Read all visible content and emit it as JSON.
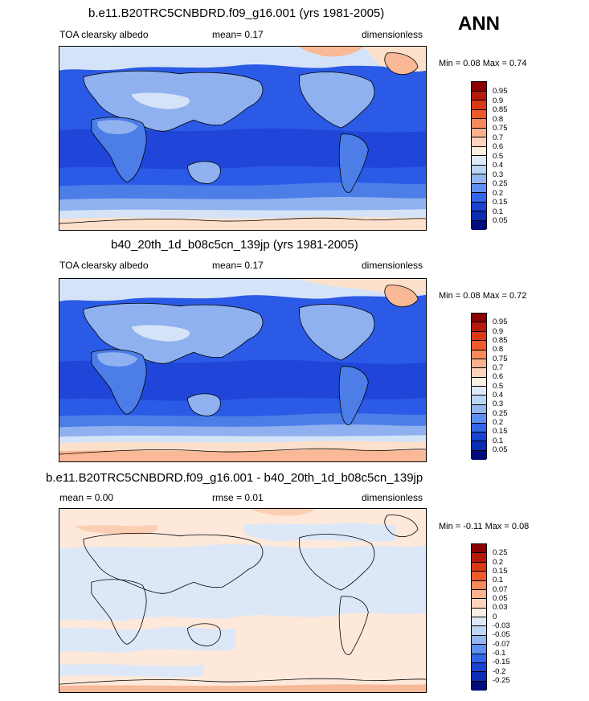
{
  "season": "ANN",
  "panels": [
    {
      "title": "b.e11.B20TRC5CNBDRD.f09_g16.001 (yrs 1981-2005)",
      "left_label": "TOA clearsky albedo",
      "center_label": "mean=  0.17",
      "right_label": "dimensionless",
      "minmax": "Min =  0.08 Max =   0.74",
      "colorbar": {
        "labels": [
          "0.95",
          "0.9",
          "0.85",
          "0.8",
          "0.75",
          "0.7",
          "0.6",
          "0.5",
          "0.4",
          "0.3",
          "0.25",
          "0.2",
          "0.15",
          "0.1",
          "0.05"
        ],
        "colors": [
          "#8b0000",
          "#b5190c",
          "#d93a14",
          "#ee5a2a",
          "#f78a5a",
          "#fbb38e",
          "#fdd3bb",
          "#fdeee2",
          "#dde9f8",
          "#bcd5f3",
          "#93b6ee",
          "#5f8ff0",
          "#3166e8",
          "#1a43cf",
          "#0a2db4",
          "#000c7c"
        ]
      }
    },
    {
      "title": "b40_20th_1d_b08c5cn_139jp (yrs 1981-2005)",
      "left_label": "TOA clearsky albedo",
      "center_label": "mean=  0.17",
      "right_label": "dimensionless",
      "minmax": "Min =  0.08 Max =   0.72",
      "colorbar": {
        "labels": [
          "0.95",
          "0.9",
          "0.85",
          "0.8",
          "0.75",
          "0.7",
          "0.6",
          "0.5",
          "0.4",
          "0.3",
          "0.25",
          "0.2",
          "0.15",
          "0.1",
          "0.05"
        ],
        "colors": [
          "#8b0000",
          "#b5190c",
          "#d93a14",
          "#ee5a2a",
          "#f78a5a",
          "#fbb38e",
          "#fdd3bb",
          "#fdeee2",
          "#dde9f8",
          "#bcd5f3",
          "#93b6ee",
          "#5f8ff0",
          "#3166e8",
          "#1a43cf",
          "#0a2db4",
          "#000c7c"
        ]
      }
    },
    {
      "title": "b.e11.B20TRC5CNBDRD.f09_g16.001 - b40_20th_1d_b08c5cn_139jp",
      "left_label": "mean =   0.00",
      "center_label": "rmse =  0.01",
      "right_label": "dimensionless",
      "minmax": "Min =  -0.11 Max =   0.08",
      "colorbar": {
        "labels": [
          "0.25",
          "0.2",
          "0.15",
          "0.1",
          "0.07",
          "0.05",
          "0.03",
          "0",
          "-0.03",
          "-0.05",
          "-0.07",
          "-0.1",
          "-0.15",
          "-0.2",
          "-0.25"
        ],
        "colors": [
          "#8b0000",
          "#b5190c",
          "#d93a14",
          "#ee5a2a",
          "#f78a5a",
          "#fbb38e",
          "#fdd3bb",
          "#fdeee2",
          "#dde9f8",
          "#bcd5f3",
          "#93b6ee",
          "#5f8ff0",
          "#3166e8",
          "#1a43cf",
          "#0a2db4",
          "#000c7c"
        ]
      }
    }
  ],
  "map_colors": {
    "deep_blue": "#1f46d8",
    "mid_blue": "#2a5ae6",
    "light_blue": "#8fb1ef",
    "pale_blue": "#d4e3f7",
    "pale_orange": "#fde0cc",
    "salmon": "#f9b896",
    "diff_background": "#fde8da",
    "diff_negative": "#dce8f8"
  }
}
